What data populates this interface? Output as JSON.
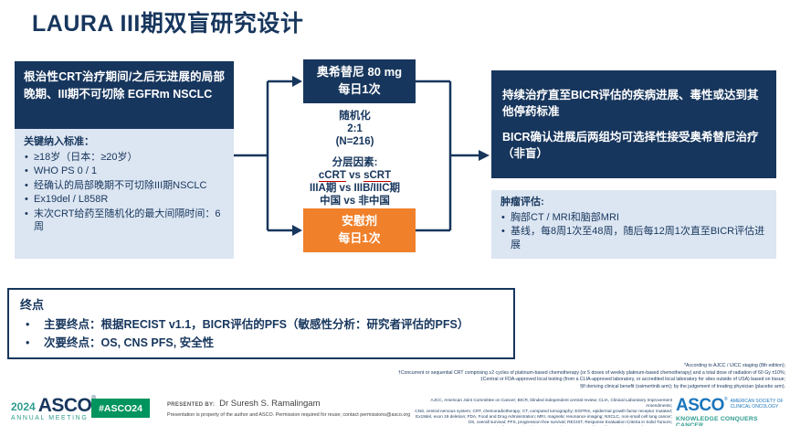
{
  "title": "LAURA III期双盲研究设计",
  "colors": {
    "navy": "#17365d",
    "light_blue": "#dce6f2",
    "orange": "#f0802a",
    "underline_red": "#c00000",
    "asco_teal": "#2f9c8e",
    "asco_green": "#00945e",
    "asco_blue": "#1b75bb"
  },
  "left": {
    "population": "根治性CRT治疗期间/之后无进展的局部晚期、III期不可切除 EGFRm NSCLC",
    "criteria_heading": "关键纳入标准：",
    "criteria_bullets": [
      "≥18岁（日本：≥20岁）",
      "WHO PS 0 / 1",
      "经确认的局部晚期不可切除III期NSCLC",
      "Ex19del / L858R",
      "末次CRT给药至随机化的最大间隔时间：6周"
    ]
  },
  "middle": {
    "osimertinib": {
      "line1": "奥希替尼 80 mg",
      "line2": "每日1次"
    },
    "randomization": [
      "随机化",
      "2:1",
      "(N=216)"
    ],
    "stratification": {
      "heading": "分层因素:",
      "arm_a": "cCRT",
      "vs": " vs ",
      "arm_b": "sCRT",
      "line2": "IIIA期 vs IIIB/IIIC期",
      "line3": "中国 vs 非中国"
    },
    "placebo": {
      "line1": "安慰剂",
      "line2": "每日1次"
    }
  },
  "right": {
    "treatment_para1": "持续治疗直至BICR评估的疾病进展、毒性或达到其他停药标准",
    "treatment_para2": "BICR确认进展后两组均可选择性接受奥希替尼治疗（非盲）",
    "assessment_heading": "肿瘤评估:",
    "assessment_bullets": [
      "胸部CT / MRI和脑部MRI",
      "基线，每8周1次至48周，随后每12周1次直至BICR评估进展"
    ]
  },
  "endpoints": {
    "heading": "终点",
    "primary_label": "主要终点：",
    "primary_text": "根据RECIST v1.1，BICR评估的PFS（敏感性分析：研究者评估的PFS）",
    "secondary_label": "次要终点：",
    "secondary_text": "OS, CNS PFS, 安全性"
  },
  "footnotes": [
    "*According to AJCC / UICC staging (8th edition);",
    "†Concurrent or sequential CRT comprising ≥2 cycles of platinum-based chemotherapy (or 5 doses of weekly platinum-based chemotherapy) and a total dose of radiation of 60 Gy ±10%;",
    "‡Central or FDA-approved local testing (from a CLIA-approved laboratory, or accredited local laboratory for sites outside of USA) based on tissue;",
    "§If deriving clinical benefit (osimertinib arm); by the judgement of treating physician (placebo arm)."
  ],
  "footer": {
    "left_logo": {
      "year": "2024",
      "asco": "ASCO",
      "reg": "®",
      "annual": "ANNUAL MEETING"
    },
    "hashtag": "#ASCO24",
    "presented_label": "PRESENTED BY:",
    "presenter": "Dr Suresh S. Ramalingam",
    "permission": "Presentation is property of the author and ASCO. Permission required for reuse; contact permissions@asco.org",
    "abbreviations": [
      "AJCC, American Joint Committee on Cancer; BICR, blinded independent central review; CLIA, Clinical Laboratory Improvement Amendments;",
      "CNS, central nervous system; CRT, chemoradiotherapy; CT, computed tomography; EGFRm, epidermal growth factor receptor mutated;",
      "Ex19del, exon 19 deletion; FDA, Food and Drug Administration; MRI, magnetic resonance imaging; NSCLC, non-small cell lung cancer;",
      "OS, overall survival; PFS, progression-free survival; RECIST, Response Evaluation Criteria in Solid Tumors;",
      "UICC, Union for International Cancer Control; WHO PS, World Health Organization performance status"
    ],
    "right_logo": {
      "asco": "ASCO",
      "reg": "®",
      "society_line1": "AMERICAN SOCIETY OF",
      "society_line2": "CLINICAL ONCOLOGY",
      "tagline": "KNOWLEDGE CONQUERS CANCER"
    }
  }
}
